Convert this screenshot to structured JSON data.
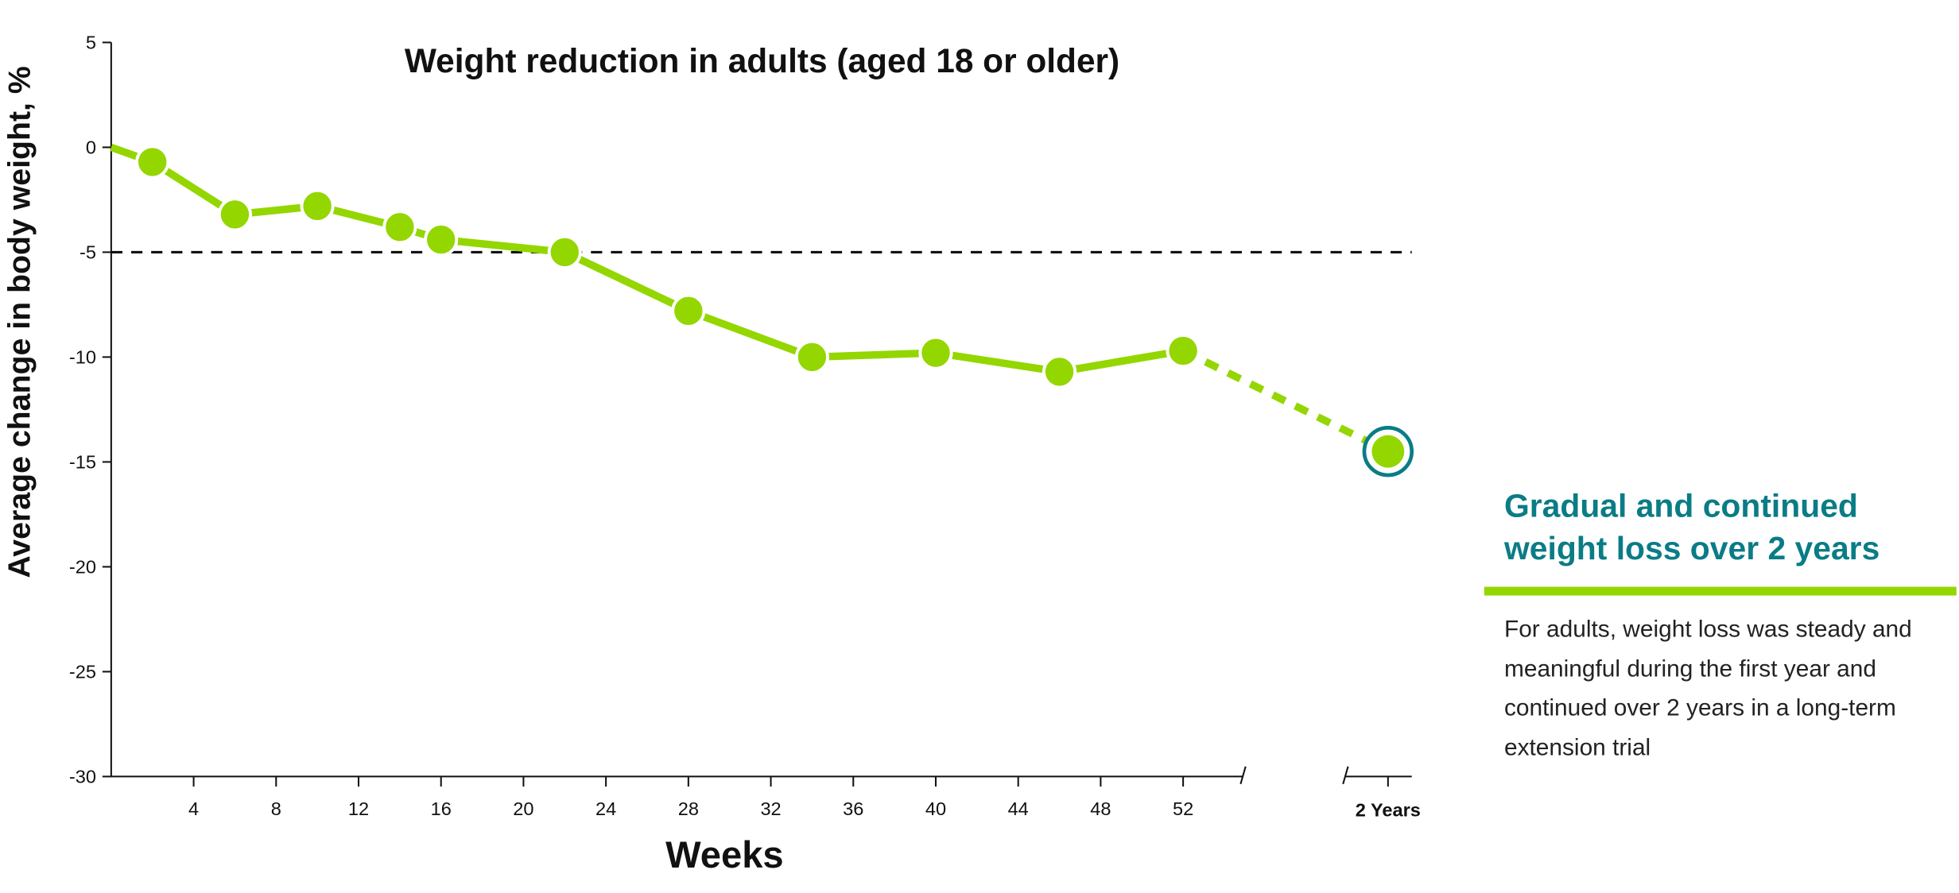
{
  "chart_data": {
    "type": "line",
    "title": "Weight reduction in adults (aged 18 or older)",
    "xlabel": "Weeks",
    "ylabel": "Average change in body weight, %",
    "ylim": [
      -30,
      5
    ],
    "yticks": [
      5,
      0,
      -5,
      -10,
      -15,
      -20,
      -25,
      -30
    ],
    "xlim": [
      0,
      56
    ],
    "xticks": [
      4,
      8,
      12,
      16,
      20,
      24,
      28,
      32,
      36,
      40,
      44,
      48,
      52
    ],
    "extra_xtick": "2 Years",
    "reference_line": {
      "y": -5,
      "style": "dashed"
    },
    "series": [
      {
        "points": [
          {
            "x": 0,
            "y": 0
          },
          {
            "x": 2,
            "y": -0.7
          },
          {
            "x": 6,
            "y": -3.2
          },
          {
            "x": 10,
            "y": -2.8
          },
          {
            "x": 14,
            "y": -3.8
          },
          {
            "x": 16,
            "y": -4.4
          },
          {
            "x": 22,
            "y": -5.0
          },
          {
            "x": 28,
            "y": -7.8
          },
          {
            "x": 34,
            "y": -10.0
          },
          {
            "x": 40,
            "y": -9.8
          },
          {
            "x": 46,
            "y": -10.7
          },
          {
            "x": 52,
            "y": -9.7
          }
        ],
        "extension_point": {
          "x": "2 Years",
          "y": -14.5
        }
      }
    ],
    "colors": {
      "line": "#94d600",
      "highlight_ring": "#0a7c86",
      "axis": "#111111"
    },
    "grid": false
  },
  "panel": {
    "heading": "Gradual and continued weight loss over 2 years",
    "body": "For adults, weight loss was steady and meaningful during the first year and continued over 2 years in a long-term extension trial"
  }
}
